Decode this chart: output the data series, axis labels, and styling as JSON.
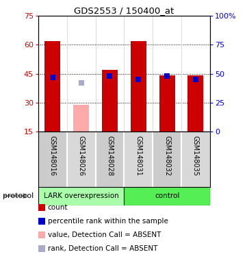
{
  "title": "GDS2553 / 150400_at",
  "samples": [
    "GSM148016",
    "GSM148026",
    "GSM148028",
    "GSM148031",
    "GSM148032",
    "GSM148035"
  ],
  "count_values": [
    62,
    29,
    47,
    62,
    44,
    44
  ],
  "count_absent": [
    false,
    true,
    false,
    false,
    false,
    false
  ],
  "rank_values": [
    47,
    42,
    48,
    45,
    48,
    45
  ],
  "rank_absent": [
    false,
    true,
    false,
    false,
    false,
    false
  ],
  "ylim_left": [
    15,
    75
  ],
  "ylim_right": [
    0,
    100
  ],
  "yticks_left": [
    15,
    30,
    45,
    60,
    75
  ],
  "yticks_right": [
    0,
    25,
    50,
    75,
    100
  ],
  "ytick_labels_right": [
    "0",
    "25",
    "50",
    "75",
    "100%"
  ],
  "color_red": "#cc0000",
  "color_pink": "#ffaaaa",
  "color_blue": "#0000cc",
  "color_lightblue": "#aaaacc",
  "color_group1_bg": "#aaffaa",
  "color_group2_bg": "#55ee55",
  "color_label_bg": "#cccccc",
  "group1_label": "LARK overexpression",
  "group2_label": "control",
  "group1_samples": [
    0,
    1,
    2
  ],
  "group2_samples": [
    3,
    4,
    5
  ],
  "bar_width": 0.55,
  "marker_size": 6,
  "legend_items": [
    {
      "color": "#cc0000",
      "label": "count"
    },
    {
      "color": "#0000cc",
      "label": "percentile rank within the sample"
    },
    {
      "color": "#ffaaaa",
      "label": "value, Detection Call = ABSENT"
    },
    {
      "color": "#aaaacc",
      "label": "rank, Detection Call = ABSENT"
    }
  ]
}
